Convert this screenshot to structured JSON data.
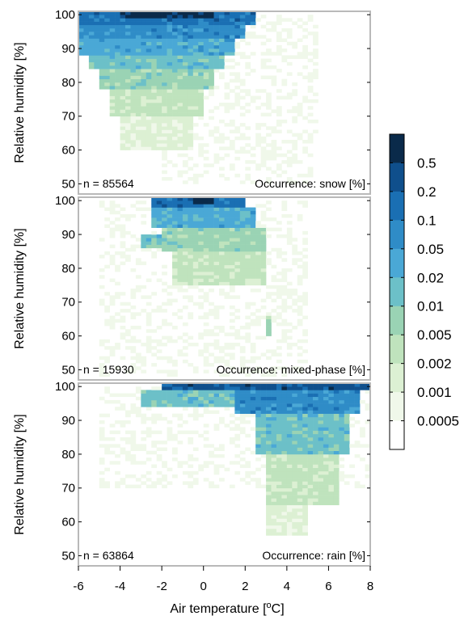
{
  "chart_data": {
    "type": "heatmap",
    "x": {
      "label_prefix": "Air temperature [",
      "label_unit_sup": "o",
      "label_suffix": "C]",
      "range": [
        -6,
        8
      ],
      "ticks": [
        -6,
        -4,
        -2,
        0,
        2,
        4,
        6,
        8
      ],
      "bin_width": 0.25
    },
    "y": {
      "label": "Relative humidity [%]",
      "range": [
        47,
        101
      ],
      "ticks": [
        50,
        60,
        70,
        80,
        90,
        100
      ],
      "bin_width": 1
    },
    "colorbar": {
      "levels": [
        "0.5",
        "0.2",
        "0.1",
        "0.05",
        "0.02",
        "0.01",
        "0.005",
        "0.002",
        "0.001",
        "0.0005"
      ],
      "colors": [
        "#0a2a4a",
        "#0f4f8c",
        "#1a6fb3",
        "#2f8cc7",
        "#4aa8d6",
        "#6cc0c8",
        "#9ad3b4",
        "#bfe3bd",
        "#dcf0d3",
        "#f0f8ea",
        "#ffffff"
      ]
    },
    "panels": [
      {
        "id": "snow",
        "n_label": "n = 85564",
        "occurrence_label": "Occurrence: snow [%]",
        "blobs": [
          {
            "x0": -6.0,
            "x1": 2.5,
            "y0": 97,
            "y1": 101,
            "level": 2
          },
          {
            "x0": -4.0,
            "x1": 0.5,
            "y0": 99,
            "y1": 101,
            "level": 0
          },
          {
            "x0": -6.0,
            "x1": 2.0,
            "y0": 93,
            "y1": 97,
            "level": 3
          },
          {
            "x0": -6.0,
            "x1": 1.5,
            "y0": 88,
            "y1": 93,
            "level": 4
          },
          {
            "x0": -5.5,
            "x1": 1.0,
            "y0": 84,
            "y1": 88,
            "level": 5
          },
          {
            "x0": -5.0,
            "x1": 0.5,
            "y0": 78,
            "y1": 84,
            "level": 6
          },
          {
            "x0": -4.5,
            "x1": 0.0,
            "y0": 70,
            "y1": 78,
            "level": 7
          },
          {
            "x0": -4.0,
            "x1": -0.5,
            "y0": 60,
            "y1": 70,
            "level": 8
          },
          {
            "x0": -2.0,
            "x1": 5.5,
            "y0": 50,
            "y1": 100,
            "level": 9
          }
        ]
      },
      {
        "id": "mixed-phase",
        "n_label": "n = 15930",
        "occurrence_label": "Occurrence: mixed-phase [%]",
        "blobs": [
          {
            "x0": -2.5,
            "x1": 2.0,
            "y0": 98,
            "y1": 101,
            "level": 2
          },
          {
            "x0": -0.5,
            "x1": 0.5,
            "y0": 99,
            "y1": 101,
            "level": 0
          },
          {
            "x0": -2.5,
            "x1": 2.5,
            "y0": 92,
            "y1": 98,
            "level": 4
          },
          {
            "x0": -3.0,
            "x1": -2.0,
            "y0": 86,
            "y1": 90,
            "level": 5
          },
          {
            "x0": -2.0,
            "x1": 3.0,
            "y0": 85,
            "y1": 92,
            "level": 6
          },
          {
            "x0": -1.5,
            "x1": 3.0,
            "y0": 75,
            "y1": 85,
            "level": 7
          },
          {
            "x0": 2.8,
            "x1": 3.2,
            "y0": 60,
            "y1": 66,
            "level": 6
          },
          {
            "x0": -5.0,
            "x1": 5.0,
            "y0": 48,
            "y1": 100,
            "level": 9
          }
        ]
      },
      {
        "id": "rain",
        "n_label": "n = 63864",
        "occurrence_label": "Occurrence: rain [%]",
        "blobs": [
          {
            "x0": -2.0,
            "x1": 8.0,
            "y0": 99,
            "y1": 101,
            "level": 1
          },
          {
            "x0": 1.5,
            "x1": 7.5,
            "y0": 92,
            "y1": 99,
            "level": 3
          },
          {
            "x0": -3.0,
            "x1": 2.0,
            "y0": 94,
            "y1": 99,
            "level": 5
          },
          {
            "x0": 2.5,
            "x1": 7.0,
            "y0": 80,
            "y1": 92,
            "level": 5
          },
          {
            "x0": 3.0,
            "x1": 6.5,
            "y0": 65,
            "y1": 80,
            "level": 7
          },
          {
            "x0": 3.0,
            "x1": 5.0,
            "y0": 56,
            "y1": 65,
            "level": 8
          },
          {
            "x0": -5.0,
            "x1": 8.0,
            "y0": 70,
            "y1": 100,
            "level": 9
          }
        ]
      }
    ]
  }
}
